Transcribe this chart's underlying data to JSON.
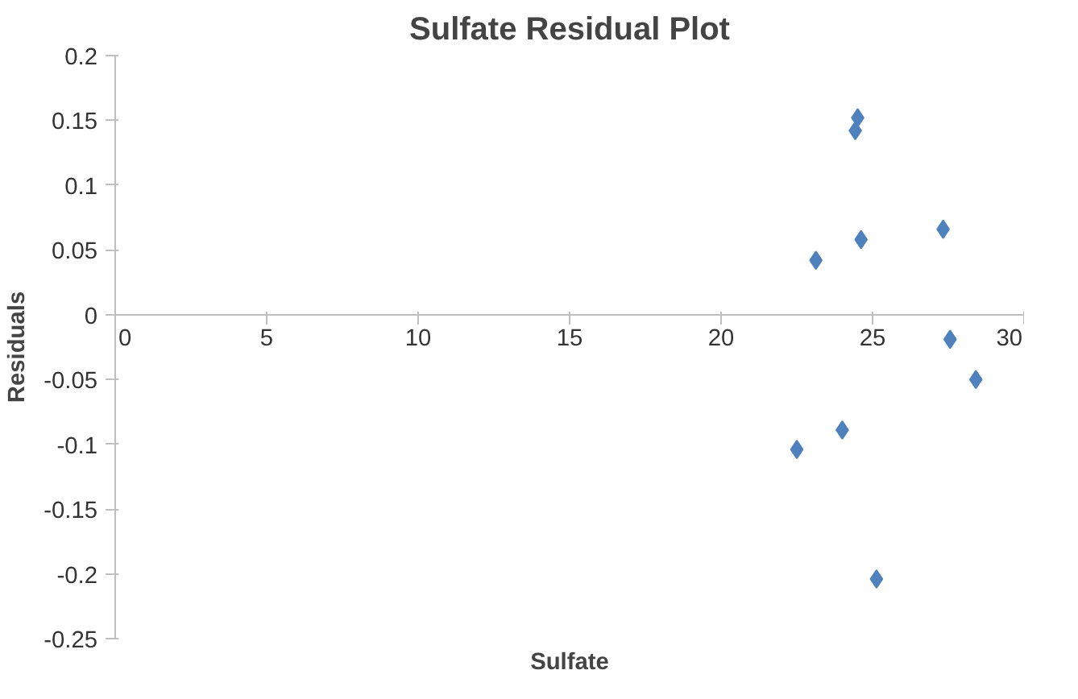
{
  "chart_data": {
    "type": "scatter",
    "title": "Sulfate Residual Plot",
    "xlabel": "Sulfate",
    "ylabel": "Residuals",
    "x": [
      24.51,
      24.43,
      23.13,
      24.62,
      27.33,
      27.56,
      28.41,
      24.0,
      22.5,
      25.13
    ],
    "series": [
      {
        "color": "#4f81bd",
        "values": [
          0.152,
          0.142,
          0.042,
          0.058,
          0.066,
          -0.019,
          -0.05,
          -0.089,
          -0.104,
          -0.204
        ]
      }
    ],
    "xlim": [
      0,
      30
    ],
    "xticks": [
      0,
      5,
      10,
      15,
      20,
      25,
      30
    ],
    "ylim": [
      -0.25,
      0.2
    ],
    "yticks": [
      -0.25,
      -0.2,
      -0.15,
      -0.1,
      -0.05,
      0,
      0.05,
      0.1,
      0.15,
      0.2
    ],
    "grid": false,
    "marker": "diamond"
  }
}
